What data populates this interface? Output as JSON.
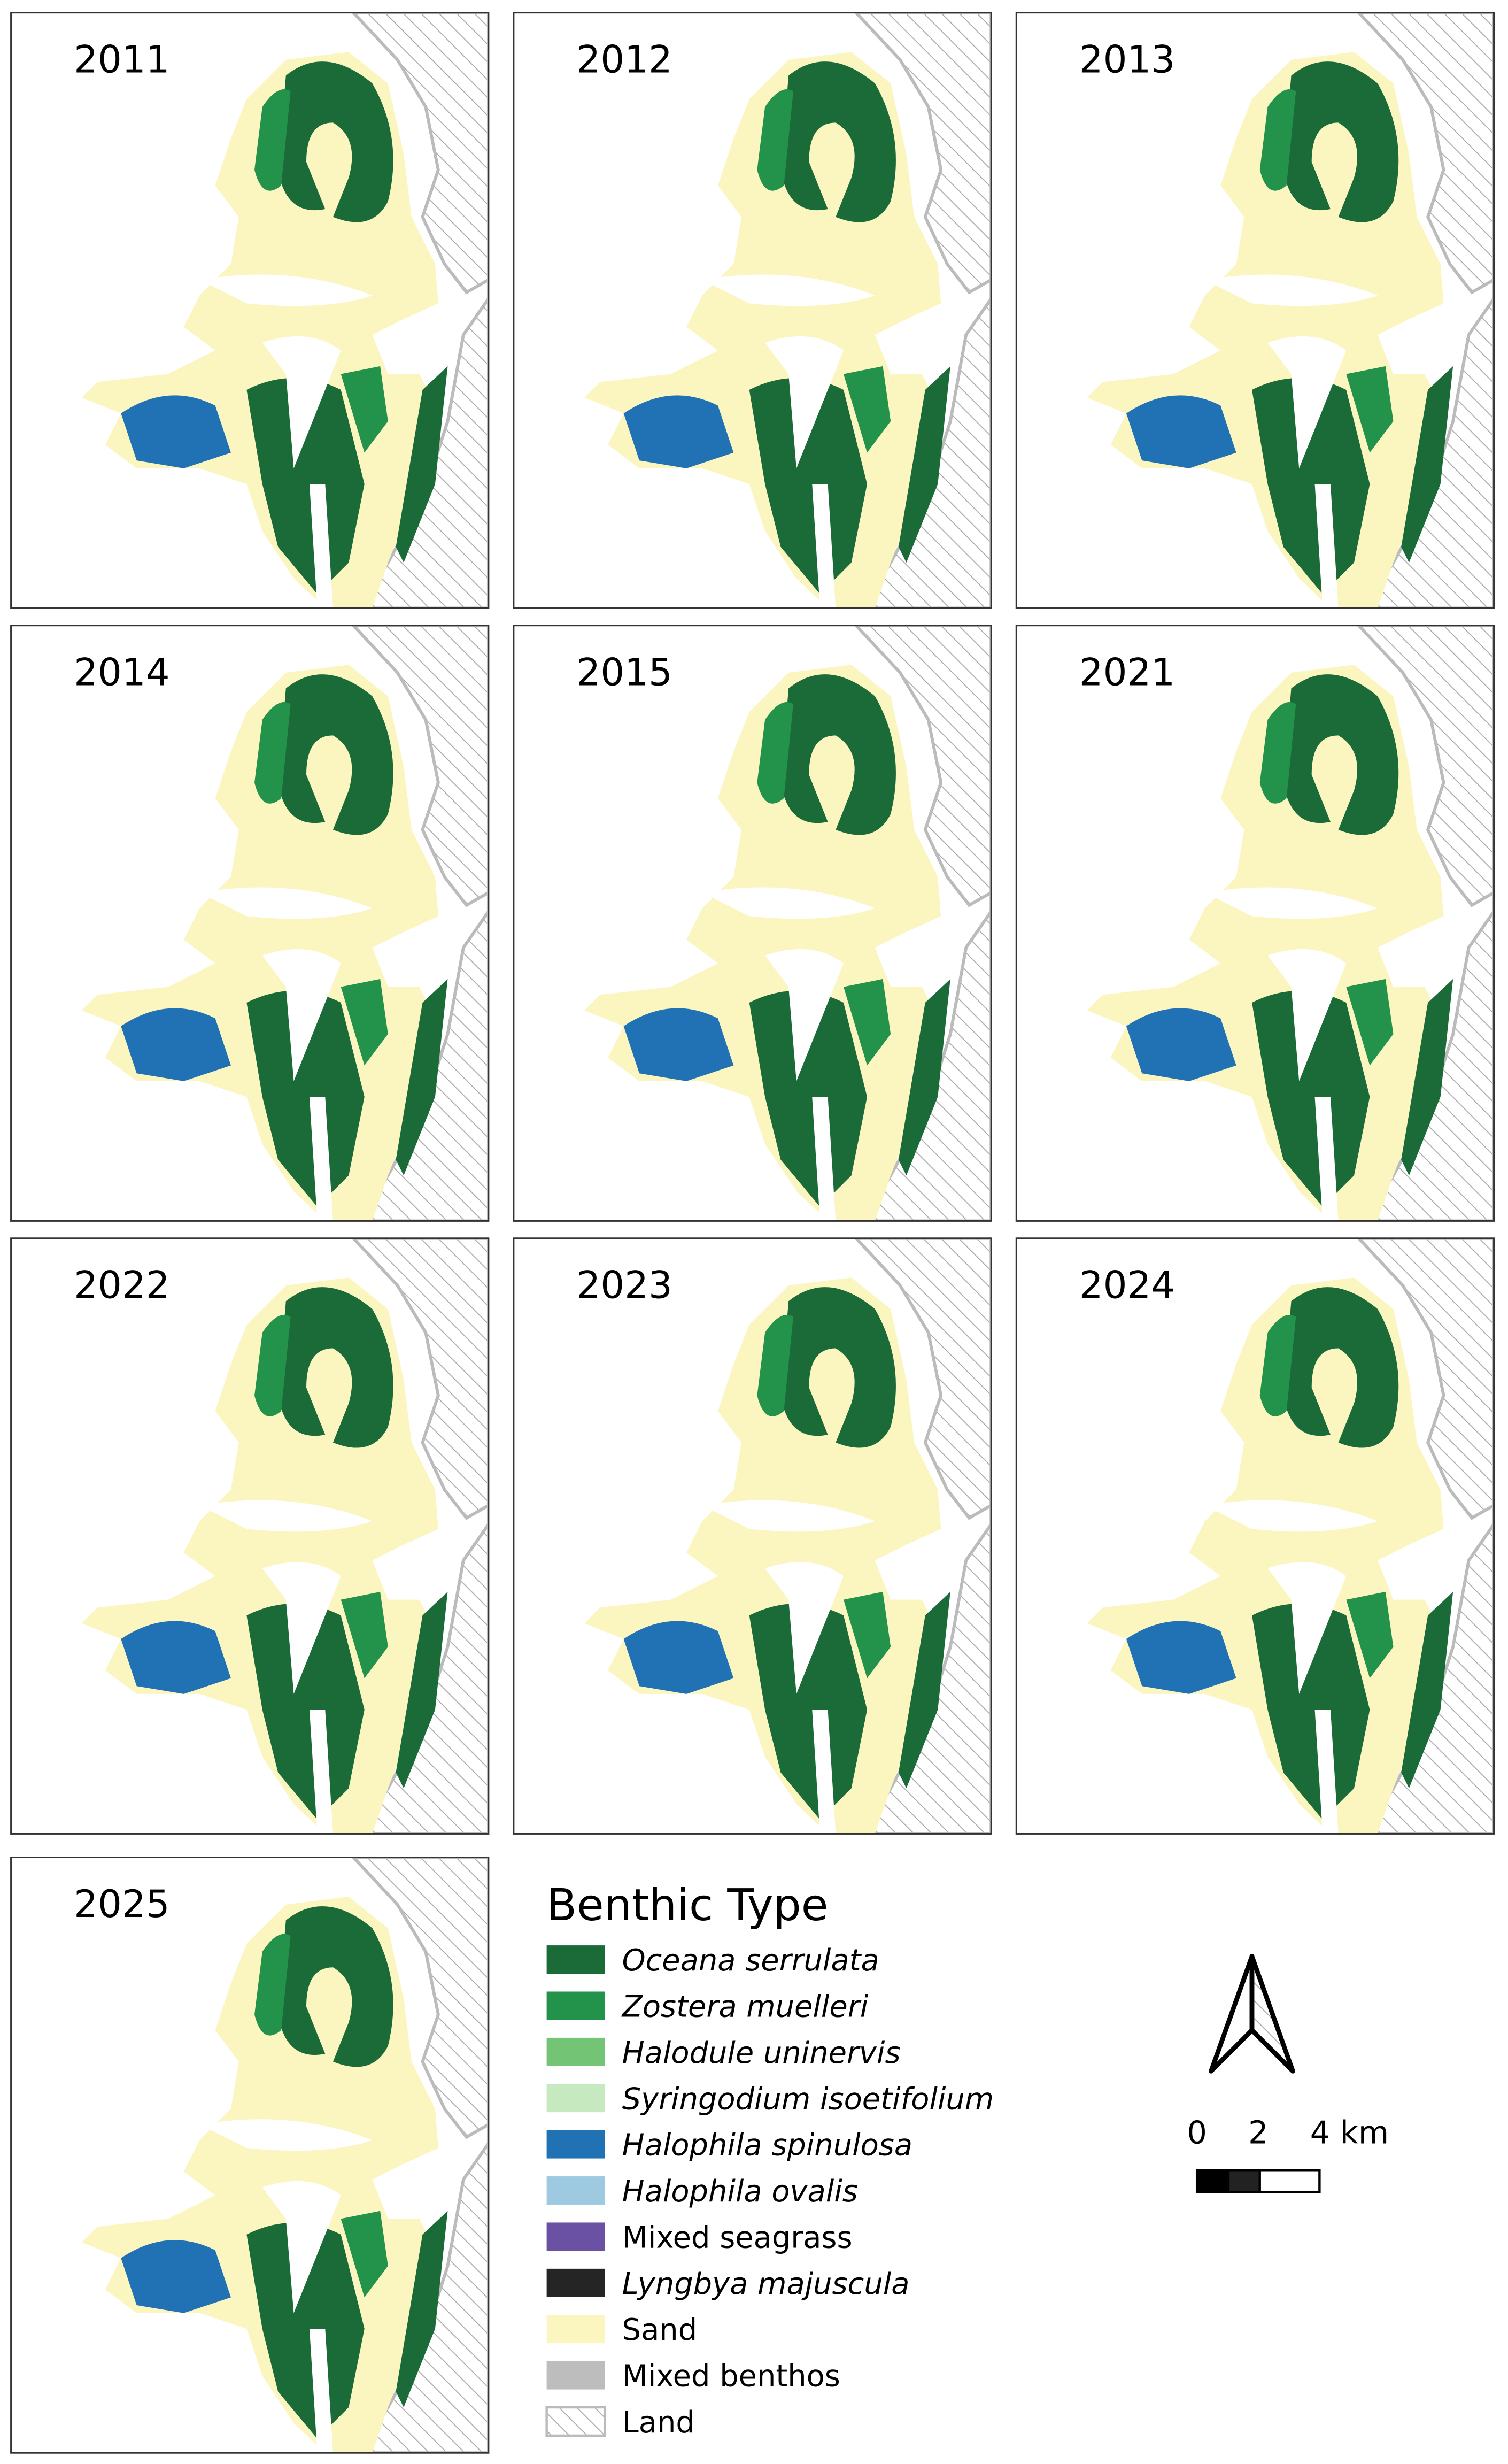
{
  "panels": [
    {
      "year": "2011"
    },
    {
      "year": "2012"
    },
    {
      "year": "2013"
    },
    {
      "year": "2014"
    },
    {
      "year": "2015"
    },
    {
      "year": "2021"
    },
    {
      "year": "2022"
    },
    {
      "year": "2023"
    },
    {
      "year": "2024"
    },
    {
      "year": "2025"
    }
  ],
  "legend": {
    "title": "Benthic Type",
    "items": [
      {
        "label": "Oceana serrulata",
        "color": "#1b6b39"
      },
      {
        "label": "Zostera muelleri",
        "color": "#23924a"
      },
      {
        "label": "Halodule uninervis",
        "color": "#74c476"
      },
      {
        "label": "Syringodium isoetifolium",
        "color": "#c7e9c0"
      },
      {
        "label": "Halophila spinulosa",
        "color": "#2171b5"
      },
      {
        "label": "Halophila ovalis",
        "color": "#9ecae1"
      },
      {
        "label": "Mixed seagrass",
        "color": "#6a51a3"
      },
      {
        "label": "Lyngbya majuscula",
        "color": "#252525"
      },
      {
        "label": "Sand",
        "color": "#fbf5c0"
      },
      {
        "label": "Mixed benthos",
        "color": "#bdbdbd"
      },
      {
        "label": "Land"
      }
    ]
  },
  "scale_bar": {
    "labels": [
      "0",
      "2",
      "4 km"
    ]
  }
}
